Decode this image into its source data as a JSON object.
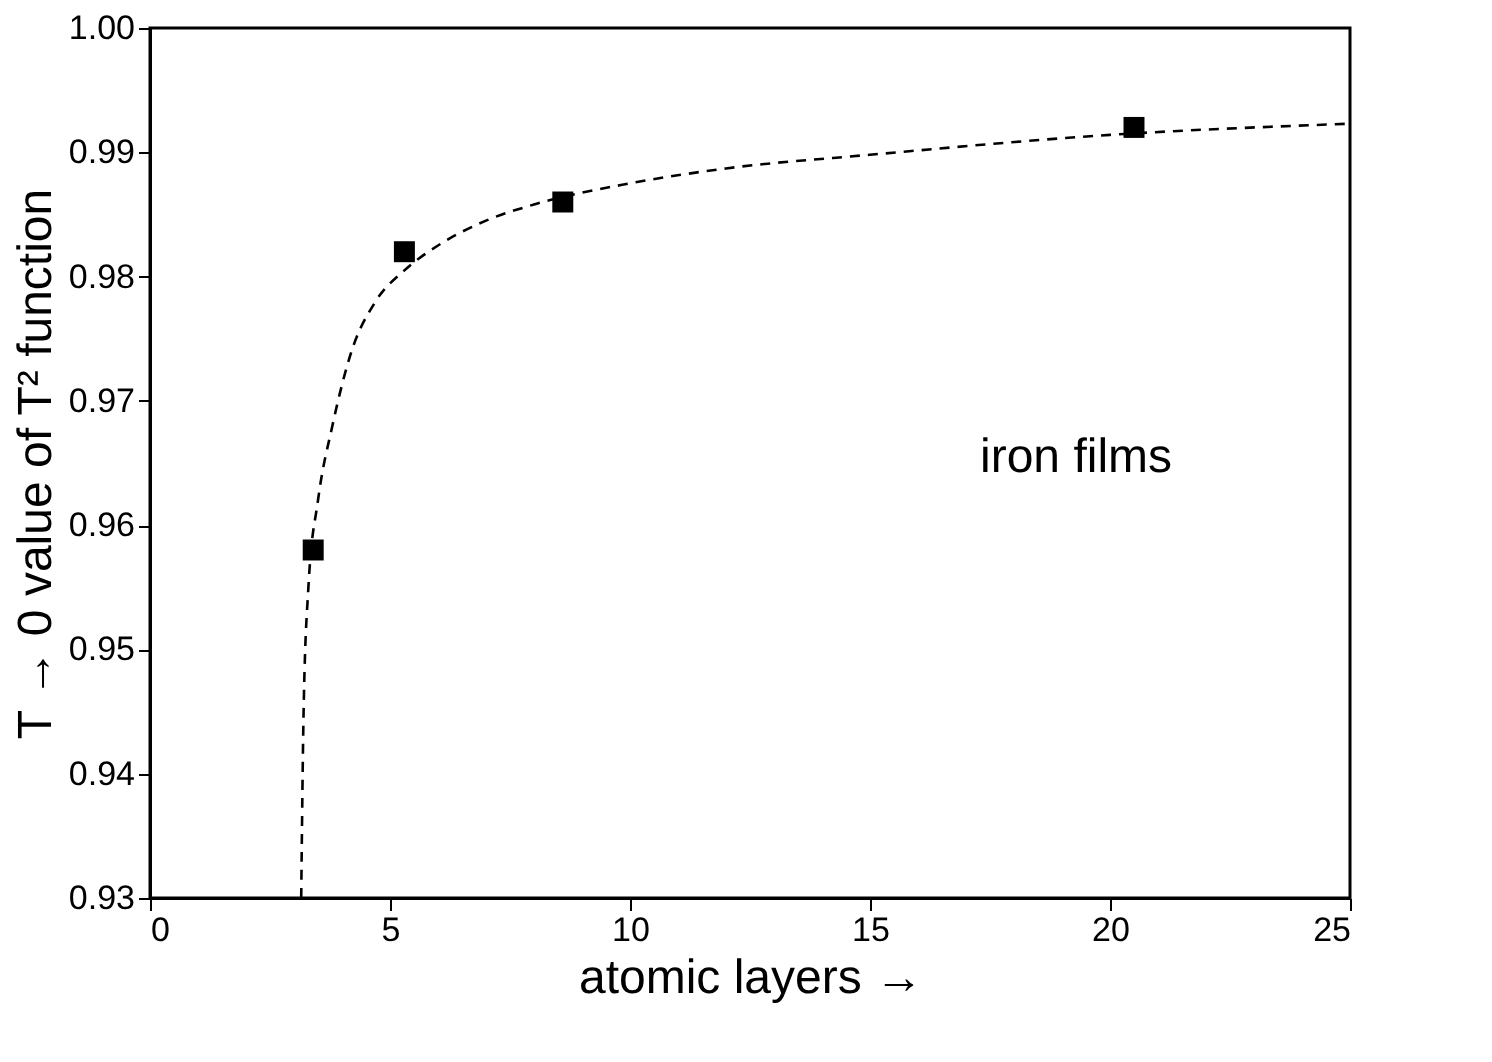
{
  "chart_data": {
    "type": "scatter",
    "xlabel": "atomic layers →",
    "ylabel": "T → 0 value of T² function",
    "xlim": [
      0,
      25
    ],
    "ylim": [
      0.93,
      1.0
    ],
    "xticks": [
      0,
      5,
      10,
      15,
      20,
      25
    ],
    "yticks": [
      0.93,
      0.94,
      0.95,
      0.96,
      0.97,
      0.98,
      0.99,
      {
        "value": 1.0,
        "label": "1.00"
      }
    ],
    "grid": false,
    "annotations": [
      "iron films"
    ],
    "series": [
      {
        "color": "#000000",
        "marker": "square",
        "x": [
          3.4,
          5.3,
          8.6,
          20.5
        ],
        "values": [
          0.958,
          0.982,
          0.986,
          0.992
        ]
      },
      {
        "type": "line",
        "color": "#000000",
        "line_style": "dashed",
        "x": [
          3.15,
          3.2,
          3.3,
          3.5,
          3.8,
          4.2,
          4.7,
          5.3,
          6,
          7,
          8,
          10,
          12,
          15,
          20,
          25
        ],
        "values": [
          0.93,
          0.945,
          0.955,
          0.962,
          0.968,
          0.974,
          0.978,
          0.9805,
          0.9825,
          0.9845,
          0.9858,
          0.9875,
          0.9887,
          0.9898,
          0.9914,
          0.9923
        ]
      }
    ]
  }
}
